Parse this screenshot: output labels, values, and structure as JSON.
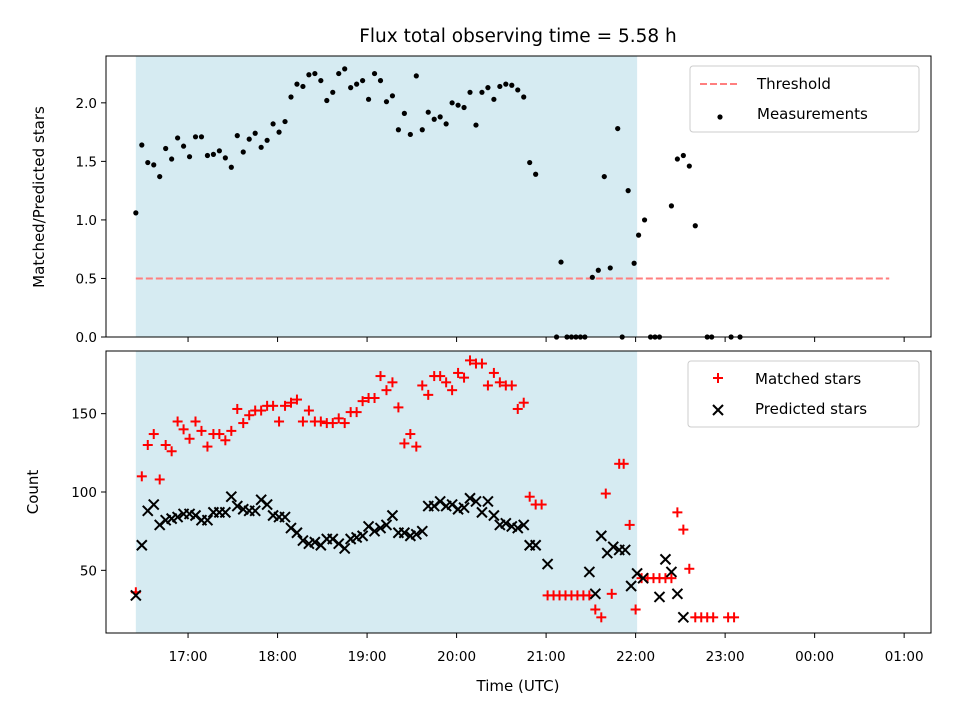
{
  "chart_data": [
    {
      "type": "scatter",
      "title": "Flux total observing time = 5.58 h",
      "ylabel": "Matched/Predicted stars",
      "ylim": [
        0,
        2.4
      ],
      "yticks": [
        0.0,
        0.5,
        1.0,
        1.5,
        2.0
      ],
      "ytick_labels": [
        "0.0",
        "0.5",
        "1.0",
        "1.5",
        "2.0"
      ],
      "legend_position": "top-right",
      "shaded_interval": {
        "start": "16:25",
        "end": "22:01",
        "color": "#add8e6"
      },
      "series": [
        {
          "name": "Threshold",
          "kind": "dashed-line",
          "color": "#ff7f7f",
          "x_range": [
            "16:25",
            "00:50"
          ],
          "y": 0.5
        },
        {
          "name": "Measurements",
          "kind": "points",
          "color": "#000000",
          "points": [
            [
              "16:25",
              1.06
            ],
            [
              "16:29",
              1.64
            ],
            [
              "16:33",
              1.49
            ],
            [
              "16:37",
              1.47
            ],
            [
              "16:41",
              1.37
            ],
            [
              "16:45",
              1.61
            ],
            [
              "16:49",
              1.52
            ],
            [
              "16:53",
              1.7
            ],
            [
              "16:57",
              1.63
            ],
            [
              "17:01",
              1.54
            ],
            [
              "17:05",
              1.71
            ],
            [
              "17:09",
              1.71
            ],
            [
              "17:13",
              1.55
            ],
            [
              "17:17",
              1.56
            ],
            [
              "17:21",
              1.59
            ],
            [
              "17:25",
              1.53
            ],
            [
              "17:29",
              1.45
            ],
            [
              "17:33",
              1.72
            ],
            [
              "17:37",
              1.58
            ],
            [
              "17:41",
              1.69
            ],
            [
              "17:45",
              1.74
            ],
            [
              "17:49",
              1.62
            ],
            [
              "17:53",
              1.68
            ],
            [
              "17:57",
              1.82
            ],
            [
              "18:01",
              1.75
            ],
            [
              "18:05",
              1.84
            ],
            [
              "18:09",
              2.05
            ],
            [
              "18:13",
              2.16
            ],
            [
              "18:17",
              2.14
            ],
            [
              "18:21",
              2.24
            ],
            [
              "18:25",
              2.25
            ],
            [
              "18:29",
              2.19
            ],
            [
              "18:33",
              2.02
            ],
            [
              "18:37",
              2.09
            ],
            [
              "18:41",
              2.25
            ],
            [
              "18:45",
              2.29
            ],
            [
              "18:49",
              2.13
            ],
            [
              "18:53",
              2.16
            ],
            [
              "18:57",
              2.19
            ],
            [
              "19:01",
              2.03
            ],
            [
              "19:05",
              2.25
            ],
            [
              "19:09",
              2.19
            ],
            [
              "19:13",
              2.01
            ],
            [
              "19:17",
              2.06
            ],
            [
              "19:21",
              1.77
            ],
            [
              "19:25",
              1.91
            ],
            [
              "19:29",
              1.73
            ],
            [
              "19:33",
              2.23
            ],
            [
              "19:37",
              1.77
            ],
            [
              "19:41",
              1.92
            ],
            [
              "19:45",
              1.86
            ],
            [
              "19:49",
              1.88
            ],
            [
              "19:53",
              1.82
            ],
            [
              "19:57",
              2.0
            ],
            [
              "20:01",
              1.98
            ],
            [
              "20:05",
              1.96
            ],
            [
              "20:09",
              2.09
            ],
            [
              "20:13",
              1.81
            ],
            [
              "20:17",
              2.09
            ],
            [
              "20:21",
              2.13
            ],
            [
              "20:25",
              2.03
            ],
            [
              "20:29",
              2.14
            ],
            [
              "20:33",
              2.16
            ],
            [
              "20:37",
              2.15
            ],
            [
              "20:41",
              2.11
            ],
            [
              "20:45",
              2.05
            ],
            [
              "20:49",
              1.49
            ],
            [
              "20:53",
              1.39
            ],
            [
              "21:07",
              0.0
            ],
            [
              "21:10",
              0.64
            ],
            [
              "21:14",
              0.0
            ],
            [
              "21:17",
              0.0
            ],
            [
              "21:20",
              0.0
            ],
            [
              "21:23",
              0.0
            ],
            [
              "21:26",
              0.0
            ],
            [
              "21:31",
              0.51
            ],
            [
              "21:35",
              0.57
            ],
            [
              "21:39",
              1.37
            ],
            [
              "21:43",
              0.59
            ],
            [
              "21:48",
              1.78
            ],
            [
              "21:51",
              0.0
            ],
            [
              "21:55",
              1.25
            ],
            [
              "21:59",
              0.63
            ],
            [
              "22:02",
              0.87
            ],
            [
              "22:06",
              1.0
            ],
            [
              "22:10",
              0.0
            ],
            [
              "22:13",
              0.0
            ],
            [
              "22:16",
              0.0
            ],
            [
              "22:24",
              1.12
            ],
            [
              "22:28",
              1.52
            ],
            [
              "22:32",
              1.55
            ],
            [
              "22:36",
              1.46
            ],
            [
              "22:40",
              0.95
            ],
            [
              "22:48",
              0.0
            ],
            [
              "22:51",
              0.0
            ],
            [
              "23:04",
              0.0
            ],
            [
              "23:10",
              0.0
            ]
          ]
        }
      ]
    },
    {
      "type": "scatter",
      "xlabel": "Time (UTC)",
      "ylabel": "Count",
      "ylim": [
        10,
        190
      ],
      "yticks": [
        50,
        100,
        150
      ],
      "ytick_labels": [
        "50",
        "100",
        "150"
      ],
      "xlim": [
        "16:05",
        "01:18"
      ],
      "xticks": [
        "17:00",
        "18:00",
        "19:00",
        "20:00",
        "21:00",
        "22:00",
        "23:00",
        "00:00",
        "01:00"
      ],
      "legend_position": "top-right",
      "shaded_interval": {
        "start": "16:25",
        "end": "22:01",
        "color": "#add8e6"
      },
      "series": [
        {
          "name": "Matched stars",
          "marker": "plus",
          "color": "#ff0000",
          "points": []
        },
        {
          "name": "Predicted stars",
          "marker": "x",
          "color": "#000000",
          "points": []
        }
      ]
    }
  ]
}
